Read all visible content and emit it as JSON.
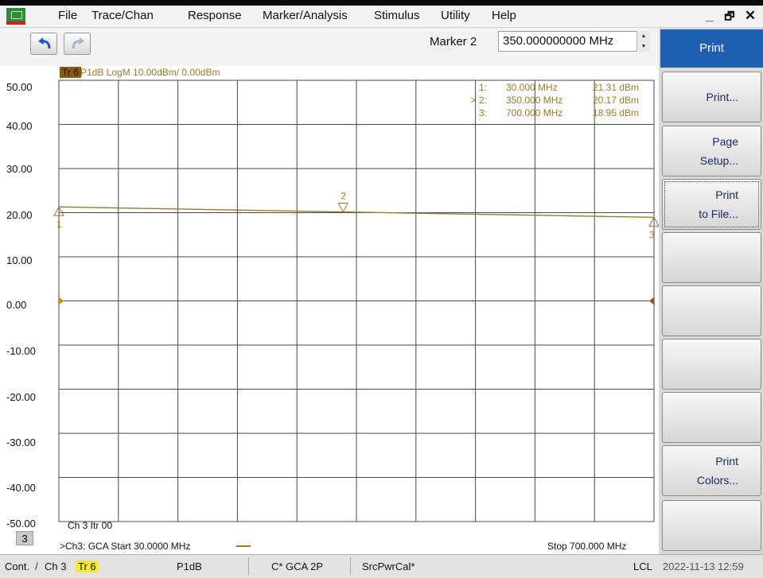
{
  "menu": {
    "items": [
      "File",
      "Trace/Chan",
      "Response",
      "Marker/Analysis",
      "Stimulus",
      "Utility",
      "Help"
    ],
    "window_controls": [
      "_",
      "🗗",
      "✕"
    ]
  },
  "toolbar": {
    "marker_label": "Marker 2",
    "marker_value": "350.000000000 MHz"
  },
  "trace": {
    "tag": "Tr 6",
    "title": "P1dB LogM 10.00dBm/ 0.00dBm",
    "color": "#9a7a2a"
  },
  "y_axis_labels": [
    "50.00",
    "40.00",
    "30.00",
    "20.00",
    "10.00",
    "0.00",
    "-10.00",
    "-20.00",
    "-30.00",
    "-40.00",
    "-50.00"
  ],
  "marker_table": [
    {
      "prefix": "",
      "id": "1:",
      "freq": "30.000 MHz",
      "value": "21.31 dBm"
    },
    {
      "prefix": ">",
      "id": "2:",
      "freq": "350.000 MHz",
      "value": "20.17 dBm"
    },
    {
      "prefix": "",
      "id": "3:",
      "freq": "700.000 MHz",
      "value": "18.95 dBm"
    }
  ],
  "channel_label": "Ch 3  Itr 00",
  "channel_number": "3",
  "sweep": {
    "start": ">Ch3: GCA  Start  30.0000 MHz",
    "stop": "Stop  700.000 MHz"
  },
  "status": {
    "mode": "Cont.",
    "slash": "/",
    "channel": "Ch 3",
    "trace": "Tr 6",
    "measurement": "P1dB",
    "cal": "C* GCA 2P",
    "src": "SrcPwrCal*",
    "lcl": "LCL",
    "datetime": "2022-11-13 12:59"
  },
  "softkeys": {
    "title": "Print",
    "buttons": [
      {
        "lines": [
          "Print..."
        ]
      },
      {
        "lines": [
          "Page",
          "Setup..."
        ]
      },
      {
        "lines": [
          "Print",
          "to File..."
        ]
      },
      {
        "lines": []
      },
      {
        "lines": []
      },
      {
        "lines": []
      },
      {
        "lines": []
      },
      {
        "lines": [
          "Print",
          "Colors..."
        ]
      },
      {
        "lines": []
      }
    ]
  },
  "chart_data": {
    "type": "line",
    "x": [
      30,
      350,
      700
    ],
    "series": [
      {
        "values": [
          21.31,
          20.17,
          18.95
        ]
      }
    ],
    "xlim": [
      30,
      700
    ],
    "ylim": [
      -50,
      50
    ],
    "y_scale_per_div": 10,
    "grid": true,
    "markers": [
      {
        "label": "1",
        "x": 30,
        "y": 21.31
      },
      {
        "label": "2",
        "x": 350,
        "y": 20.17
      },
      {
        "label": "3",
        "x": 700,
        "y": 18.95
      }
    ]
  }
}
